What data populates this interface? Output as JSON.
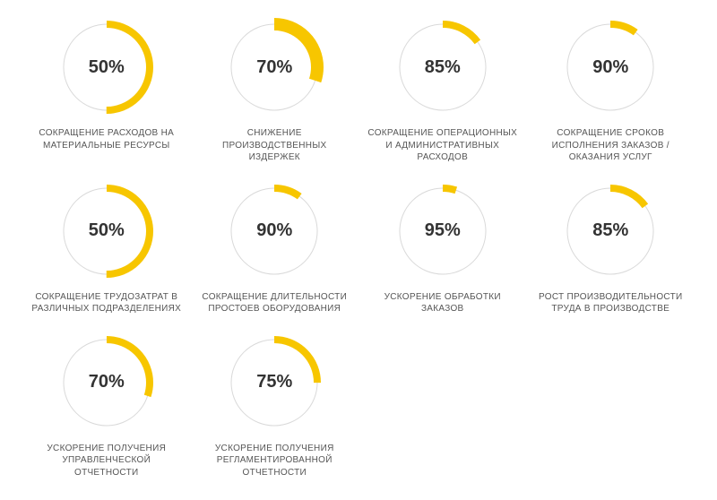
{
  "chart": {
    "type": "donut-grid",
    "columns": 4,
    "background_color": "#ffffff",
    "ring_background_color": "#d9d9d9",
    "accent_color": "#f7c600",
    "value_text_color": "#333333",
    "caption_text_color": "#555555",
    "value_fontsize": 20,
    "caption_fontsize": 10,
    "ring_radius": 48,
    "ring_stroke_width": 8,
    "thick_stroke_width": 14
  },
  "metrics": [
    {
      "value": 50,
      "display": "50%",
      "caption": "СОКРАЩЕНИЕ РАСХОДОВ НА МАТЕРИАЛЬНЫЕ РЕСУРСЫ",
      "thick": false
    },
    {
      "value": 70,
      "display": "70%",
      "caption": "СНИЖЕНИЕ ПРОИЗВОДСТВЕННЫХ ИЗДЕРЖЕК",
      "thick": true
    },
    {
      "value": 85,
      "display": "85%",
      "caption": "СОКРАЩЕНИЕ ОПЕРАЦИОННЫХ И АДМИНИСТРАТИВНЫХ РАСХОДОВ",
      "thick": false
    },
    {
      "value": 90,
      "display": "90%",
      "caption": "СОКРАЩЕНИЕ СРОКОВ ИСПОЛНЕНИЯ ЗАКАЗОВ / ОКАЗАНИЯ УСЛУГ",
      "thick": false
    },
    {
      "value": 50,
      "display": "50%",
      "caption": "СОКРАЩЕНИЕ ТРУДОЗАТРАТ В РАЗЛИЧНЫХ ПОДРАЗДЕЛЕНИЯХ",
      "thick": false
    },
    {
      "value": 90,
      "display": "90%",
      "caption": "СОКРАЩЕНИЕ ДЛИТЕЛЬНОСТИ ПРОСТОЕВ ОБОРУДОВАНИЯ",
      "thick": false
    },
    {
      "value": 95,
      "display": "95%",
      "caption": "УСКОРЕНИЕ ОБРАБОТКИ ЗАКАЗОВ",
      "thick": false
    },
    {
      "value": 85,
      "display": "85%",
      "caption": "РОСТ ПРОИЗВОДИТЕЛЬНОСТИ ТРУДА В ПРОИЗВОДСТВЕ",
      "thick": false
    },
    {
      "value": 70,
      "display": "70%",
      "caption": "УСКОРЕНИЕ ПОЛУЧЕНИЯ УПРАВЛЕНЧЕСКОЙ ОТЧЕТНОСТИ",
      "thick": false
    },
    {
      "value": 75,
      "display": "75%",
      "caption": "УСКОРЕНИЕ ПОЛУЧЕНИЯ РЕГЛАМЕНТИРОВАННОЙ ОТЧЕТНОСТИ",
      "thick": false
    }
  ]
}
